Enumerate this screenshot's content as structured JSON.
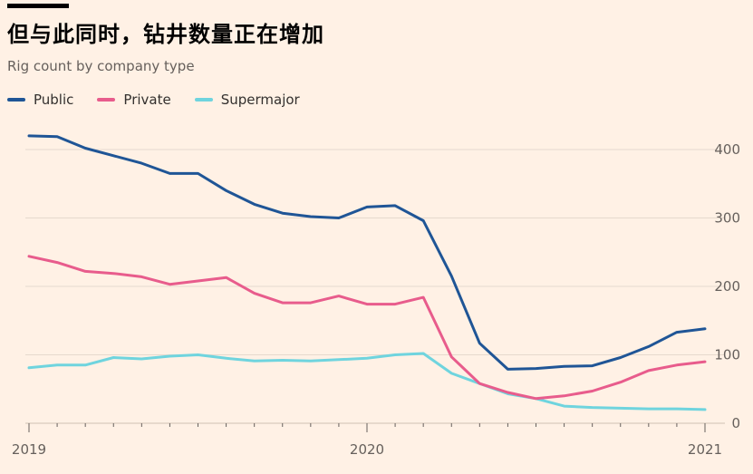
{
  "title": "但与此同时，钻井数量正在增加",
  "subtitle": "Rig count by company type",
  "colors": {
    "public": "#1F5596",
    "private": "#E85C8C",
    "supermajor": "#6FD4DE",
    "grid": "#E6D9CE",
    "axis_text": "#66605C"
  },
  "chart_data": {
    "type": "line",
    "title": "但与此同时，钻井数量正在增加",
    "subtitle": "Rig count by company type",
    "xlabel": "",
    "ylabel": "",
    "ylim": [
      0,
      440
    ],
    "yticks": [
      0,
      100,
      200,
      300,
      400
    ],
    "xticks": [
      "2019",
      "2020",
      "2021"
    ],
    "grid": true,
    "legend_position": "top-left",
    "x": [
      "2019-01",
      "2019-02",
      "2019-03",
      "2019-04",
      "2019-05",
      "2019-06",
      "2019-07",
      "2019-08",
      "2019-09",
      "2019-10",
      "2019-11",
      "2019-12",
      "2020-01",
      "2020-02",
      "2020-03",
      "2020-04",
      "2020-05",
      "2020-06",
      "2020-07",
      "2020-08",
      "2020-09",
      "2020-10",
      "2020-11",
      "2020-12",
      "2021-01"
    ],
    "series": [
      {
        "name": "Public",
        "values": [
          420,
          419,
          402,
          391,
          380,
          365,
          365,
          340,
          320,
          307,
          302,
          300,
          316,
          318,
          296,
          215,
          117,
          79,
          80,
          83,
          84,
          96,
          112,
          133,
          138
        ]
      },
      {
        "name": "Private",
        "values": [
          244,
          235,
          222,
          219,
          214,
          203,
          208,
          213,
          190,
          176,
          176,
          186,
          174,
          174,
          184,
          97,
          58,
          45,
          36,
          40,
          47,
          60,
          77,
          85,
          90
        ]
      },
      {
        "name": "Supermajor",
        "values": [
          81,
          85,
          85,
          96,
          94,
          98,
          100,
          95,
          91,
          92,
          91,
          93,
          95,
          100,
          102,
          73,
          58,
          43,
          36,
          25,
          23,
          22,
          21,
          21,
          20
        ]
      }
    ]
  }
}
